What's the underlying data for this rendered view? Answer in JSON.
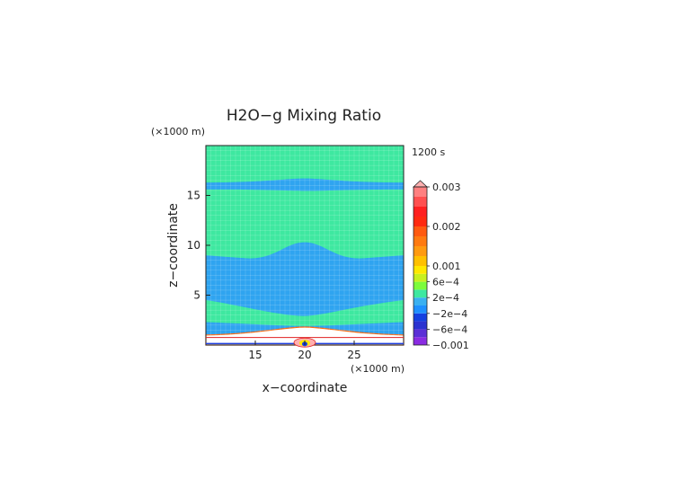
{
  "chart_data": {
    "type": "heatmap",
    "title": "H2O−g Mixing Ratio",
    "time_label": "1200 s",
    "xlabel": "x−coordinate",
    "ylabel": "z−coordinate",
    "x_unit": "(×1000 m)",
    "y_unit": "(×1000 m)",
    "xlim": [
      10,
      30
    ],
    "ylim": [
      0,
      20
    ],
    "xticks": [
      15,
      20,
      25
    ],
    "yticks": [
      5,
      10,
      15
    ],
    "grid": true,
    "colorbar": {
      "levels": [
        -0.001,
        -0.0008,
        -0.0006,
        -0.0004,
        -0.0002,
        0,
        0.0002,
        0.0004,
        0.0006,
        0.0008,
        0.001,
        0.00125,
        0.0015,
        0.00175,
        0.002,
        0.00225,
        0.0025,
        0.00275,
        0.003
      ],
      "colors": [
        "#8a2be2",
        "#5b2fd6",
        "#2b33d0",
        "#1440e0",
        "#1e90ff",
        "#3ab0f0",
        "#3ee8a0",
        "#7cfc3c",
        "#c8f020",
        "#ffe800",
        "#ffc000",
        "#ff9a10",
        "#ff7a10",
        "#ff5a10",
        "#ff2a10",
        "#ff2020",
        "#ff5050",
        "#ff8080",
        "#ffb0b0"
      ],
      "tick_labels": [
        "0.003",
        "0.002",
        "0.001",
        "6e−4",
        "2e−4",
        "−2e−4",
        "−6e−4",
        "−0.001"
      ],
      "tick_values": [
        0.003,
        0.002,
        0.001,
        0.0006,
        0.0002,
        -0.0002,
        -0.0006,
        -0.001
      ],
      "extend": "max"
    },
    "field_bands": [
      {
        "name": "upper blue band",
        "z_range": [
          15.6,
          16.3
        ],
        "value": -0.0001
      },
      {
        "name": "mid blue region",
        "z_range": [
          4.5,
          9.0
        ],
        "crest_z": 10.3,
        "crest_x": 20,
        "value": -0.0001
      },
      {
        "name": "lower blue band",
        "z_range": [
          0.8,
          2.3
        ],
        "value": -0.0001
      },
      {
        "name": "near-surface moist layer",
        "z_range": [
          0.0,
          1.8
        ],
        "value": 0.001
      },
      {
        "name": "background",
        "value": 0.0001
      }
    ]
  },
  "colors": {
    "background_field": "#3ee8a0",
    "blue_field": "#2fa4f0",
    "grid": "#c8f0e0",
    "axis": "#222222"
  }
}
